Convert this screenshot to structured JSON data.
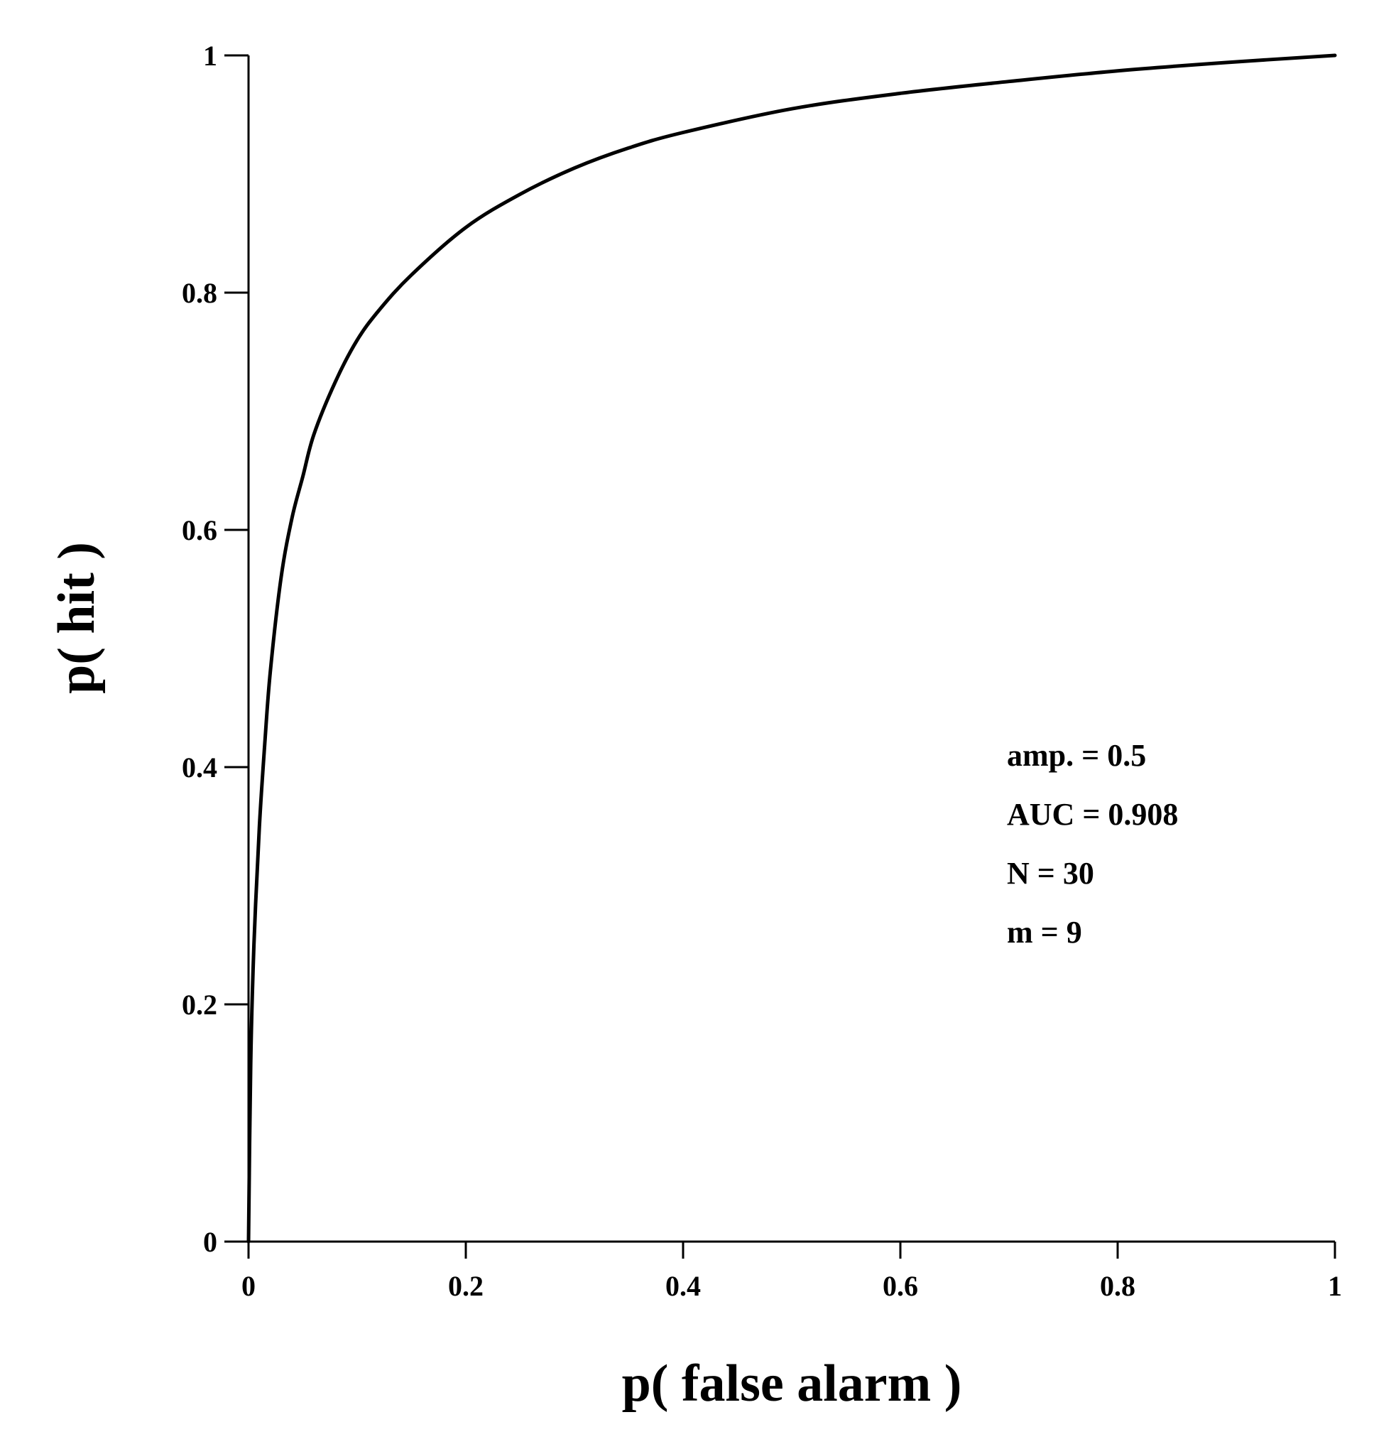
{
  "chart_data": {
    "type": "line",
    "title": "",
    "xlabel": "p( false alarm )",
    "ylabel": "p( hit )",
    "xlim": [
      0,
      1
    ],
    "ylim": [
      0,
      1
    ],
    "grid": false,
    "legend": "none",
    "x_ticks": [
      0,
      0.2,
      0.4,
      0.6,
      0.8,
      1
    ],
    "x_tick_labels": [
      "0",
      "0.2",
      "0.4",
      "0.6",
      "0.8",
      "1"
    ],
    "y_ticks": [
      0,
      0.2,
      0.4,
      0.6,
      0.8,
      1
    ],
    "y_tick_labels": [
      "0",
      "0.2",
      "0.4",
      "0.6",
      "0.8",
      "1"
    ],
    "series": [
      {
        "color": "#000000",
        "x": [
          0,
          0.002,
          0.005,
          0.01,
          0.015,
          0.02,
          0.03,
          0.04,
          0.05,
          0.06,
          0.08,
          0.1,
          0.12,
          0.15,
          0.2,
          0.25,
          0.3,
          0.35,
          0.4,
          0.5,
          0.6,
          0.7,
          0.8,
          0.9,
          1.0
        ],
        "y": [
          0,
          0.15,
          0.25,
          0.35,
          0.42,
          0.48,
          0.56,
          0.61,
          0.645,
          0.68,
          0.725,
          0.76,
          0.785,
          0.815,
          0.855,
          0.883,
          0.905,
          0.922,
          0.935,
          0.955,
          0.968,
          0.978,
          0.987,
          0.994,
          1.0
        ]
      }
    ],
    "annotations": [
      {
        "text": "amp. = 0.5"
      },
      {
        "text": "AUC = 0.908"
      },
      {
        "text": "N = 30"
      },
      {
        "text": "m = 9"
      }
    ]
  }
}
